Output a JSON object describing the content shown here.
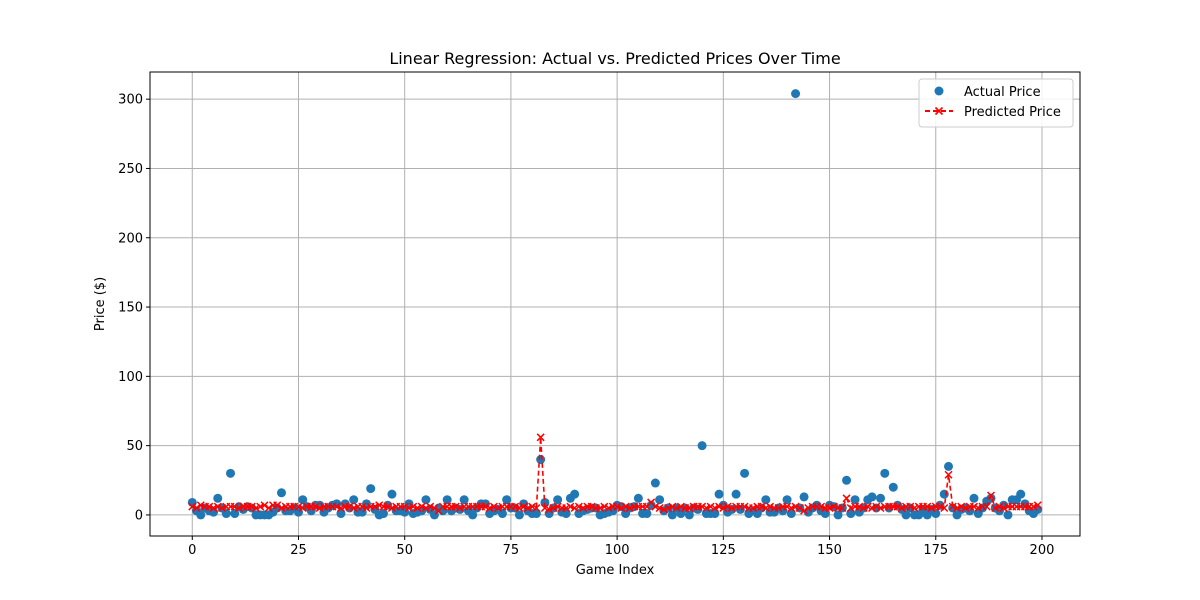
{
  "chart_data": {
    "type": "scatter",
    "title": "Linear Regression: Actual vs. Predicted Prices Over Time",
    "xlabel": "Game Index",
    "ylabel": "Price ($)",
    "xlim": [
      -9.95,
      208.95
    ],
    "ylim": [
      -15.2,
      319.6
    ],
    "xticks": [
      0,
      25,
      50,
      75,
      100,
      125,
      150,
      175,
      200
    ],
    "yticks": [
      0,
      50,
      100,
      150,
      200,
      250,
      300
    ],
    "grid": true,
    "legend_position": "upper right",
    "series": [
      {
        "name": "Actual Price",
        "style": "markers",
        "color": "#1f77b4",
        "x": [
          0,
          1,
          2,
          3,
          4,
          5,
          6,
          7,
          8,
          9,
          10,
          11,
          12,
          13,
          14,
          15,
          16,
          17,
          18,
          19,
          20,
          21,
          22,
          23,
          24,
          25,
          26,
          27,
          28,
          29,
          30,
          31,
          32,
          33,
          34,
          35,
          36,
          37,
          38,
          39,
          40,
          41,
          42,
          43,
          44,
          45,
          46,
          47,
          48,
          49,
          50,
          51,
          52,
          53,
          54,
          55,
          56,
          57,
          58,
          59,
          60,
          61,
          62,
          63,
          64,
          65,
          66,
          67,
          68,
          69,
          70,
          71,
          72,
          73,
          74,
          75,
          76,
          77,
          78,
          79,
          80,
          81,
          82,
          83,
          84,
          85,
          86,
          87,
          88,
          89,
          90,
          91,
          92,
          93,
          94,
          95,
          96,
          97,
          98,
          99,
          100,
          101,
          102,
          103,
          104,
          105,
          106,
          107,
          108,
          109,
          110,
          111,
          112,
          113,
          114,
          115,
          116,
          117,
          118,
          119,
          120,
          121,
          122,
          123,
          124,
          125,
          126,
          127,
          128,
          129,
          130,
          131,
          132,
          133,
          134,
          135,
          136,
          137,
          138,
          139,
          140,
          141,
          142,
          143,
          144,
          145,
          146,
          147,
          148,
          149,
          150,
          151,
          152,
          153,
          154,
          155,
          156,
          157,
          158,
          159,
          160,
          161,
          162,
          163,
          164,
          165,
          166,
          167,
          168,
          169,
          170,
          171,
          172,
          173,
          174,
          175,
          176,
          177,
          178,
          179,
          180,
          181,
          182,
          183,
          184,
          185,
          186,
          187,
          188,
          189,
          190,
          191,
          192,
          193,
          194,
          195,
          196,
          197,
          198,
          199
        ],
        "y": [
          9,
          3,
          0,
          5,
          3,
          2,
          12,
          5,
          1,
          30,
          1,
          6,
          4,
          6,
          5,
          0,
          0,
          0,
          0,
          2,
          5,
          16,
          3,
          3,
          5,
          2,
          11,
          6,
          3,
          7,
          7,
          2,
          5,
          7,
          8,
          1,
          8,
          5,
          11,
          2,
          2,
          8,
          19,
          4,
          0,
          1,
          7,
          15,
          3,
          3,
          2,
          8,
          1,
          2,
          3,
          11,
          4,
          0,
          5,
          3,
          11,
          3,
          5,
          4,
          11,
          3,
          0,
          5,
          8,
          8,
          1,
          3,
          4,
          1,
          11,
          5,
          5,
          0,
          8,
          3,
          1,
          1,
          40,
          9,
          1,
          5,
          11,
          2,
          1,
          12,
          15,
          1,
          3,
          4,
          5,
          5,
          0,
          1,
          2,
          3,
          7,
          6,
          1,
          5,
          6,
          12,
          1,
          1,
          7,
          23,
          11,
          3,
          5,
          0,
          5,
          1,
          5,
          0,
          5,
          4,
          50,
          1,
          1,
          1,
          15,
          7,
          2,
          4,
          15,
          4,
          30,
          1,
          3,
          1,
          5,
          11,
          2,
          2,
          5,
          3,
          11,
          1,
          304,
          5,
          13,
          2,
          5,
          7,
          3,
          1,
          7,
          6,
          0,
          5,
          25,
          1,
          11,
          2,
          5,
          11,
          13,
          5,
          12,
          30,
          5,
          20,
          7,
          4,
          0,
          5,
          0,
          0,
          4,
          0,
          4,
          1,
          7,
          15,
          35,
          5,
          0,
          4,
          5,
          3,
          12,
          1,
          5,
          10,
          12,
          5,
          3,
          7,
          0,
          11,
          11,
          15,
          8,
          3,
          1,
          4
        ]
      },
      {
        "name": "Predicted Price",
        "style": "dashed-line-x-markers",
        "color": "#ff0000",
        "x": [
          0,
          1,
          2,
          3,
          4,
          5,
          6,
          7,
          8,
          9,
          10,
          11,
          12,
          13,
          14,
          15,
          16,
          17,
          18,
          19,
          20,
          21,
          22,
          23,
          24,
          25,
          26,
          27,
          28,
          29,
          30,
          31,
          32,
          33,
          34,
          35,
          36,
          37,
          38,
          39,
          40,
          41,
          42,
          43,
          44,
          45,
          46,
          47,
          48,
          49,
          50,
          51,
          52,
          53,
          54,
          55,
          56,
          57,
          58,
          59,
          60,
          61,
          62,
          63,
          64,
          65,
          66,
          67,
          68,
          69,
          70,
          71,
          72,
          73,
          74,
          75,
          76,
          77,
          78,
          79,
          80,
          81,
          82,
          83,
          84,
          85,
          86,
          87,
          88,
          89,
          90,
          91,
          92,
          93,
          94,
          95,
          96,
          97,
          98,
          99,
          100,
          101,
          102,
          103,
          104,
          105,
          106,
          107,
          108,
          109,
          110,
          111,
          112,
          113,
          114,
          115,
          116,
          117,
          118,
          119,
          120,
          121,
          122,
          123,
          124,
          125,
          126,
          127,
          128,
          129,
          130,
          131,
          132,
          133,
          134,
          135,
          136,
          137,
          138,
          139,
          140,
          141,
          142,
          143,
          144,
          145,
          146,
          147,
          148,
          149,
          150,
          151,
          152,
          153,
          154,
          155,
          156,
          157,
          158,
          159,
          160,
          161,
          162,
          163,
          164,
          165,
          166,
          167,
          168,
          169,
          170,
          171,
          172,
          173,
          174,
          175,
          176,
          177,
          178,
          179,
          180,
          181,
          182,
          183,
          184,
          185,
          186,
          187,
          188,
          189,
          190,
          191,
          192,
          193,
          194,
          195,
          196,
          197,
          198,
          199
        ],
        "y": [
          6,
          5,
          7,
          6,
          6,
          5,
          6,
          5,
          6,
          6,
          6,
          5,
          6,
          6,
          6,
          5,
          6,
          7,
          5,
          7,
          7,
          5,
          6,
          6,
          6,
          6,
          5,
          6,
          6,
          6,
          5,
          6,
          6,
          6,
          6,
          5,
          6,
          6,
          5,
          6,
          6,
          5,
          6,
          6,
          7,
          6,
          6,
          5,
          6,
          6,
          6,
          5,
          6,
          5,
          6,
          5,
          6,
          5,
          3,
          6,
          6,
          6,
          6,
          5,
          6,
          6,
          6,
          6,
          6,
          6,
          5,
          6,
          5,
          6,
          6,
          6,
          6,
          5,
          6,
          5,
          6,
          5,
          56,
          5,
          4,
          5,
          6,
          5,
          5,
          6,
          5,
          6,
          5,
          6,
          6,
          5,
          5,
          6,
          5,
          6,
          6,
          5,
          6,
          5,
          6,
          6,
          6,
          6,
          9,
          6,
          5,
          4,
          5,
          6,
          5,
          6,
          5,
          5,
          6,
          6,
          6,
          5,
          6,
          5,
          6,
          5,
          6,
          5,
          6,
          6,
          6,
          5,
          5,
          6,
          6,
          5,
          6,
          5,
          5,
          6,
          6,
          5,
          6,
          5,
          3,
          5,
          6,
          6,
          6,
          5,
          5,
          6,
          5,
          5,
          12,
          5,
          6,
          6,
          5,
          6,
          5,
          6,
          5,
          6,
          6,
          6,
          6,
          5,
          6,
          6,
          5,
          6,
          6,
          6,
          5,
          6,
          6,
          5,
          29,
          6,
          5,
          6,
          5,
          6,
          6,
          5,
          6,
          6,
          14,
          5,
          6,
          5,
          6,
          6,
          6,
          6,
          6,
          6,
          6,
          7
        ]
      }
    ]
  }
}
